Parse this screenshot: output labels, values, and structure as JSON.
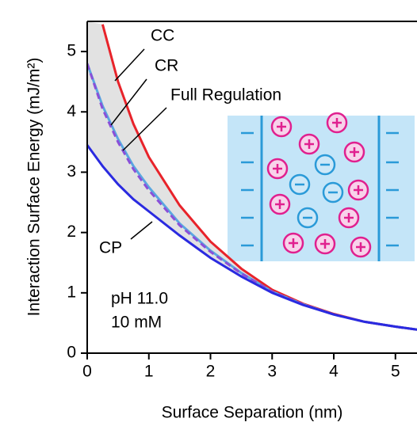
{
  "chart_data": {
    "type": "line",
    "x_label": "Surface Separation (nm)",
    "y_label": "Interaction Surface Energy (mJ/m²)",
    "x": [
      0,
      0.25,
      0.5,
      0.75,
      1,
      1.5,
      2,
      2.5,
      3,
      3.5,
      4,
      4.5,
      5,
      5.35
    ],
    "series": [
      {
        "name": "CC",
        "color": "#e8232a",
        "values": [
          null,
          5.45,
          4.5,
          3.8,
          3.25,
          2.45,
          1.85,
          1.4,
          1.05,
          0.82,
          0.65,
          0.52,
          0.44,
          0.39
        ]
      },
      {
        "name": "CR",
        "color": "#5aa7e0",
        "values": [
          4.8,
          4.1,
          3.55,
          3.1,
          2.75,
          2.15,
          1.7,
          1.33,
          1.02,
          0.81,
          0.64,
          0.52,
          0.44,
          0.39
        ]
      },
      {
        "name": "Full Regulation",
        "color": "#8a4fd8",
        "dashed": true,
        "values": [
          4.8,
          4.05,
          3.5,
          3.05,
          2.7,
          2.12,
          1.68,
          1.32,
          1.02,
          0.81,
          0.64,
          0.52,
          0.44,
          0.39
        ]
      },
      {
        "name": "CP",
        "color": "#2a2ae0",
        "values": [
          3.45,
          3.1,
          2.8,
          2.55,
          2.35,
          1.95,
          1.58,
          1.27,
          1.0,
          0.8,
          0.64,
          0.52,
          0.44,
          0.39
        ]
      }
    ],
    "annotations": [
      "pH 11.0",
      "10 mM"
    ],
    "xlim": [
      0,
      5.35
    ],
    "ylim": [
      0,
      5.5
    ],
    "xticks": [
      0,
      1,
      2,
      3,
      4,
      5
    ],
    "yticks": [
      0,
      1,
      2,
      3,
      4,
      5
    ]
  }
}
